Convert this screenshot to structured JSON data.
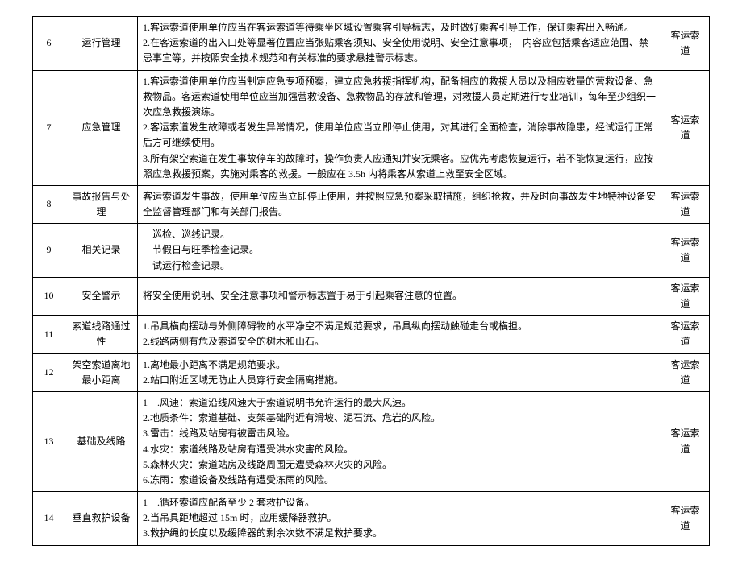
{
  "table": {
    "rows": [
      {
        "num": "6",
        "name": "运行管理",
        "content": [
          "1.客运索道使用单位应当在客运索道等待乘坐区域设置乘客引导标志，及时做好乘客引导工作，保证乘客出入畅通。",
          "2.在客运索道的出入口处等显著位置应当张贴乘客须知、安全使用说明、安全注意事项，　内容应包括乘客适应范围、禁忌事宜等，并按照安全技术规范和有关标准的要求悬挂警示标志。"
        ],
        "category": "客运索道"
      },
      {
        "num": "7",
        "name": "应急管理",
        "content": [
          "1.客运索道使用单位应当制定应急专项预案，建立应急救援指挥机构，配备相应的救援人员以及相应数量的营救设备、急救物品。客运索道使用单位应当加强营救设备、急救物品的存放和管理，对救援人员定期进行专业培训，每年至少组织一次应急救援演练。",
          "2.客运索道发生故障或者发生异常情况，使用单位应当立即停止使用，对其进行全面检查，消除事故隐患，经试运行正常后方可继续使用。",
          "3.所有架空索道在发生事故停车的故障时，操作负责人应通知并安抚乘客。应优先考虑恢复运行，若不能恢复运行，应按照应急救援预案，实施对乘客的救援。一般应在 3.5h 内将乘客从索道上救至安全区域。"
        ],
        "category": "客运索道"
      },
      {
        "num": "8",
        "name": "事故报告与处理",
        "content": [
          "客运索道发生事故，使用单位应当立即停止使用，并按照应急预案采取措施，组织抢救，并及时向事故发生地特种设备安全监督管理部门和有关部门报告。"
        ],
        "category": "客运索道"
      },
      {
        "num": "9",
        "name": "相关记录",
        "content": [
          "　巡检、巡线记录。",
          "　节假日与旺季检查记录。",
          "　试运行检查记录。"
        ],
        "category": "客运索道"
      },
      {
        "num": "10",
        "name": "安全警示",
        "content": [
          "将安全使用说明、安全注意事项和警示标志置于易于引起乘客注意的位置。"
        ],
        "category": "客运索道"
      },
      {
        "num": "11",
        "name": "索道线路通过性",
        "content": [
          "1.吊具横向摆动与外侧障碍物的水平净空不满足规范要求，吊具纵向摆动触碰走台或横担。",
          "2.线路两侧有危及索道安全的树木和山石。"
        ],
        "category": "客运索道"
      },
      {
        "num": "12",
        "name": "架空索道离地最小距离",
        "content": [
          "1.离地最小距离不满足规范要求。",
          "2.站口附近区域无防止人员穿行安全隔离措施。"
        ],
        "category": "客运索道"
      },
      {
        "num": "13",
        "name": "基础及线路",
        "content": [
          "1　.风速：索道沿线风速大于索道说明书允许运行的最大风速。",
          "2.地质条件：索道基础、支架基础附近有滑坡、泥石流、危岩的风险。",
          "3.雷击：线路及站房有被雷击风险。",
          "4.水灾：索道线路及站房有遭受洪水灾害的风险。",
          "5.森林火灾：索道站房及线路周围无遭受森林火灾的风险。",
          "6.冻雨：索道设备及线路有遭受冻雨的风险。"
        ],
        "category": "客运索道"
      },
      {
        "num": "14",
        "name": "垂直救护设备",
        "content": [
          "1　.循环索道应配备至少 2 套救护设备。",
          "2.当吊具距地超过 15m 时，应用缓降器救护。",
          "3.救护绳的长度以及缓降器的剩余次数不满足救护要求。"
        ],
        "category": "客运索道"
      }
    ]
  },
  "styles": {
    "border_color": "#000000",
    "background_color": "#ffffff",
    "text_color": "#000000",
    "font_size": 12,
    "line_height": 1.6
  }
}
